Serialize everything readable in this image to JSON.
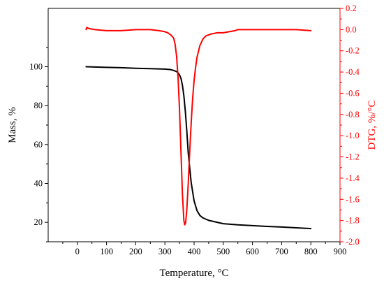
{
  "chart_data": {
    "type": "line",
    "xlabel": "Temperature, °C",
    "ylabel_left": "Mass, %",
    "ylabel_right": "DTG, %/°C",
    "xlim": [
      -100,
      900
    ],
    "ylim_left": [
      10,
      130
    ],
    "ylim_right": [
      -2.0,
      0.2
    ],
    "x_ticks": [
      0,
      100,
      200,
      300,
      400,
      500,
      600,
      700,
      800,
      900
    ],
    "y_left_ticks": [
      20,
      40,
      60,
      80,
      100
    ],
    "y_right_ticks": [
      0.2,
      0.0,
      -0.2,
      -0.4,
      -0.6,
      -0.8,
      -1.0,
      -1.2,
      -1.4,
      -1.6,
      -1.8,
      -2.0
    ],
    "y_right_tick_labels": [
      "0.2",
      "0.0",
      "-0.2",
      "-0.4",
      "-0.6",
      "-0.8",
      "-1.0",
      "-1.2",
      "-1.4",
      "-1.6",
      "-1.8",
      "-2.0"
    ],
    "grid": false,
    "series": [
      {
        "name": "",
        "axis": "left",
        "color": "#000000",
        "x": [
          30,
          100,
          150,
          200,
          250,
          300,
          320,
          330,
          340,
          345,
          350,
          355,
          360,
          365,
          370,
          375,
          380,
          390,
          400,
          410,
          420,
          430,
          450,
          500,
          550,
          600,
          650,
          700,
          750,
          800
        ],
        "y": [
          100,
          99.7,
          99.5,
          99.2,
          99.0,
          98.8,
          98.5,
          98.1,
          97.5,
          96.8,
          95.8,
          94.0,
          90.5,
          85.0,
          77.0,
          67.0,
          55.5,
          40.5,
          31.0,
          26.0,
          23.5,
          22.3,
          21.0,
          19.3,
          18.7,
          18.3,
          17.9,
          17.6,
          17.2,
          16.8
        ]
      },
      {
        "name": "",
        "axis": "right",
        "color": "#ff0000",
        "x": [
          30,
          32,
          40,
          60,
          100,
          150,
          200,
          250,
          280,
          300,
          310,
          320,
          330,
          335,
          340,
          345,
          350,
          355,
          360,
          365,
          368,
          371,
          375,
          380,
          385,
          390,
          395,
          400,
          405,
          410,
          420,
          430,
          440,
          460,
          480,
          500,
          520,
          540,
          550,
          600,
          650,
          700,
          750,
          800
        ],
        "y": [
          0.0,
          0.02,
          0.01,
          0.0,
          -0.01,
          -0.01,
          0.0,
          0.0,
          -0.01,
          -0.02,
          -0.03,
          -0.05,
          -0.08,
          -0.14,
          -0.25,
          -0.45,
          -0.75,
          -1.15,
          -1.55,
          -1.8,
          -1.84,
          -1.82,
          -1.7,
          -1.45,
          -1.15,
          -0.88,
          -0.65,
          -0.48,
          -0.36,
          -0.26,
          -0.15,
          -0.09,
          -0.06,
          -0.04,
          -0.03,
          -0.03,
          -0.02,
          -0.01,
          0.0,
          0.0,
          0.0,
          0.0,
          0.0,
          -0.01
        ]
      }
    ]
  }
}
